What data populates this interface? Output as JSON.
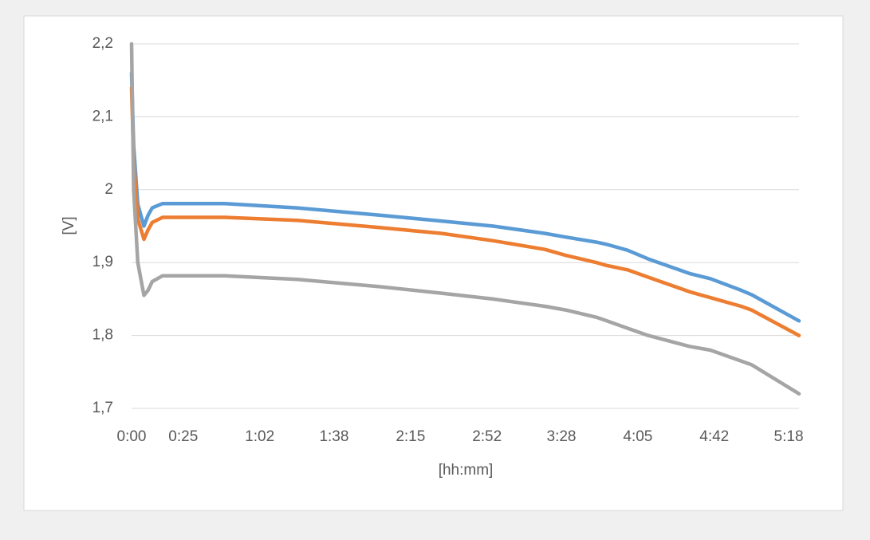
{
  "chart_data": {
    "type": "line",
    "x_label": "[hh:mm]",
    "y_label": "[V]",
    "x": [
      0,
      1,
      3,
      6,
      8,
      10,
      15,
      30,
      45,
      80,
      120,
      150,
      175,
      200,
      210,
      225,
      230,
      240,
      250,
      270,
      280,
      295,
      300,
      323
    ],
    "series": [
      {
        "color": "#5b9bd5",
        "values": [
          2.16,
          2.06,
          1.98,
          1.95,
          1.965,
          1.975,
          1.981,
          1.981,
          1.981,
          1.975,
          1.965,
          1.957,
          1.95,
          1.94,
          1.935,
          1.928,
          1.925,
          1.917,
          1.905,
          1.885,
          1.878,
          1.862,
          1.856,
          1.82
        ]
      },
      {
        "color": "#ed7d31",
        "values": [
          2.14,
          2.04,
          1.96,
          1.932,
          1.945,
          1.955,
          1.962,
          1.962,
          1.962,
          1.958,
          1.948,
          1.94,
          1.93,
          1.918,
          1.91,
          1.9,
          1.896,
          1.89,
          1.88,
          1.86,
          1.852,
          1.84,
          1.835,
          1.8
        ]
      },
      {
        "color": "#a5a5a5",
        "values": [
          2.2,
          2.0,
          1.9,
          1.855,
          1.862,
          1.874,
          1.882,
          1.882,
          1.882,
          1.877,
          1.867,
          1.858,
          1.85,
          1.84,
          1.835,
          1.825,
          1.82,
          1.81,
          1.8,
          1.785,
          1.78,
          1.765,
          1.76,
          1.72
        ]
      }
    ],
    "xlim": [
      0,
      323
    ],
    "xticks": [
      {
        "value": 0,
        "label": "0:00"
      },
      {
        "value": 25,
        "label": "0:25"
      },
      {
        "value": 62,
        "label": "1:02"
      },
      {
        "value": 98,
        "label": "1:38"
      },
      {
        "value": 135,
        "label": "2:15"
      },
      {
        "value": 172,
        "label": "2:52"
      },
      {
        "value": 208,
        "label": "3:28"
      },
      {
        "value": 245,
        "label": "4:05"
      },
      {
        "value": 282,
        "label": "4:42"
      },
      {
        "value": 318,
        "label": "5:18"
      }
    ],
    "ylim": [
      1.7,
      2.2
    ],
    "yticks": [
      {
        "value": 1.7,
        "label": "1,7"
      },
      {
        "value": 1.8,
        "label": "1,8"
      },
      {
        "value": 1.9,
        "label": "1,9"
      },
      2,
      {
        "value": 2.1,
        "label": "2,1"
      },
      {
        "value": 2.2,
        "label": "2,2"
      }
    ],
    "grid": true
  }
}
